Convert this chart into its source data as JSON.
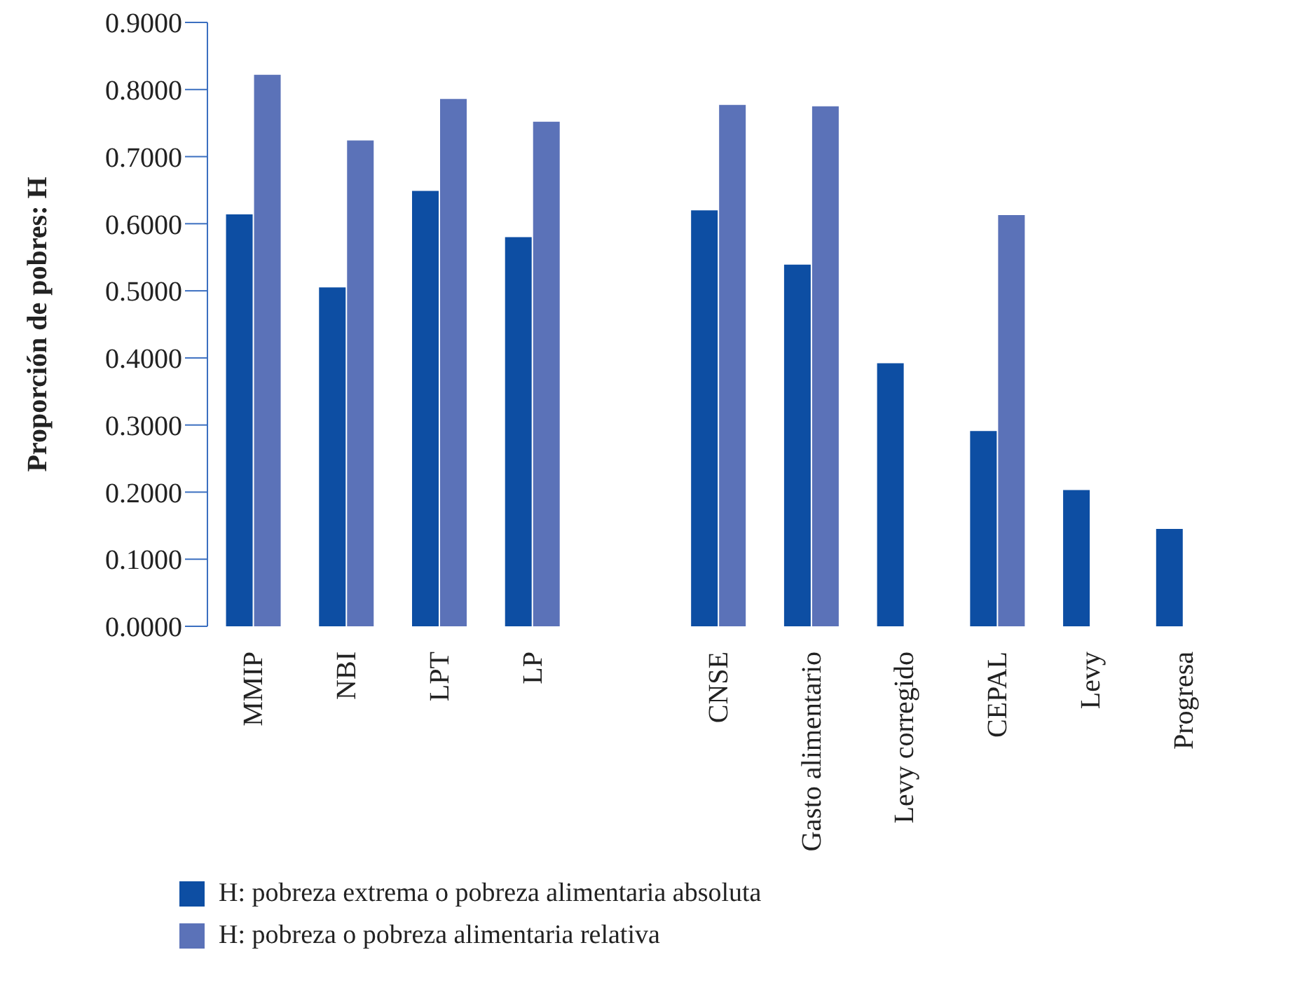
{
  "chart_data": {
    "type": "bar",
    "ylabel": "Proporción de pobres: H",
    "categories": [
      "MMIP",
      "NBI",
      "LPT",
      "LP",
      null,
      "CNSE",
      "Gasto alimentario",
      "Levy corregido",
      "CEPAL",
      "Levy",
      "Progresa"
    ],
    "series": [
      {
        "name": "H: pobreza extrema o pobreza alimentaria absoluta",
        "color": "#0d4ea3",
        "values": [
          0.614,
          0.505,
          0.649,
          0.58,
          null,
          0.62,
          0.539,
          0.392,
          0.291,
          0.203,
          0.145
        ]
      },
      {
        "name": "H: pobreza o pobreza alimentaria relativa",
        "color": "#5b72b8",
        "values": [
          0.822,
          0.724,
          0.786,
          0.752,
          null,
          0.777,
          0.775,
          null,
          0.613,
          null,
          null
        ]
      }
    ],
    "ylim": [
      0,
      0.9
    ],
    "yticks": [
      {
        "value": 0,
        "label": "0.0000"
      },
      {
        "value": 0.1,
        "label": "0.1000"
      },
      {
        "value": 0.2,
        "label": "0.2000"
      },
      {
        "value": 0.3,
        "label": "0.3000"
      },
      {
        "value": 0.4,
        "label": "0.4000"
      },
      {
        "value": 0.5,
        "label": "0.5000"
      },
      {
        "value": 0.6,
        "label": "0.6000"
      },
      {
        "value": 0.7,
        "label": "0.7000"
      },
      {
        "value": 0.8,
        "label": "0.8000"
      },
      {
        "value": 0.9,
        "label": "0.9000"
      }
    ],
    "grid": false,
    "legend": "bottom left"
  }
}
